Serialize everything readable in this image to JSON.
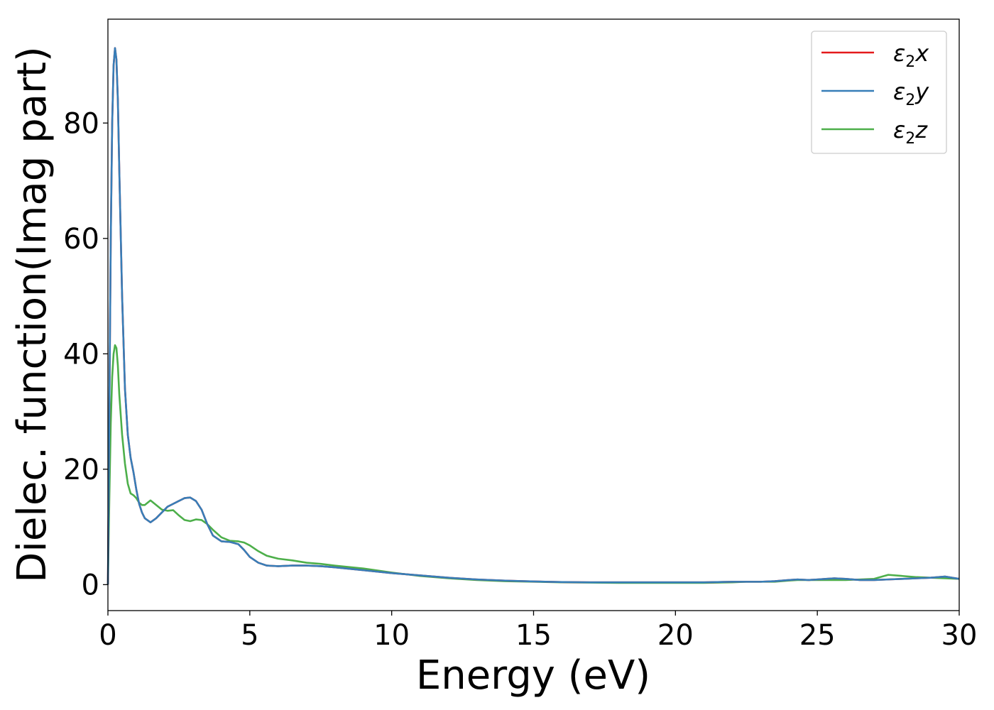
{
  "chart_data": {
    "type": "line",
    "title": "",
    "xlabel": "Energy (eV)",
    "ylabel": "Dielec. function(Imag part)",
    "xlim": [
      0,
      30
    ],
    "ylim": [
      -4.5,
      98
    ],
    "xticks": [
      0,
      5,
      10,
      15,
      20,
      25,
      30
    ],
    "yticks": [
      0,
      20,
      40,
      60,
      80
    ],
    "grid": false,
    "legend_position": "top-right",
    "series": [
      {
        "name": "x",
        "color": "#e41a1c",
        "x": [
          0,
          0.05,
          0.1,
          0.15,
          0.2,
          0.25,
          0.3,
          0.35,
          0.4,
          0.5,
          0.6,
          0.7,
          0.8,
          0.9,
          1.0,
          1.1,
          1.2,
          1.3,
          1.5,
          1.7,
          1.9,
          2.1,
          2.3,
          2.5,
          2.7,
          2.9,
          3.1,
          3.3,
          3.5,
          3.7,
          4.0,
          4.3,
          4.6,
          4.8,
          5.0,
          5.3,
          5.6,
          6.0,
          6.5,
          7.0,
          7.5,
          8.0,
          9.0,
          10.0,
          11.0,
          12.0,
          13.0,
          14.0,
          15.0,
          16.0,
          17.0,
          18.0,
          19.0,
          20.0,
          21.0,
          22.0,
          22.5,
          23.0,
          23.5,
          24.0,
          24.3,
          24.7,
          25.0,
          25.3,
          25.6,
          26.0,
          26.5,
          27.0,
          27.5,
          28.0,
          28.5,
          29.0,
          29.5,
          30.0
        ],
        "values": [
          0,
          30,
          60,
          80,
          90,
          93,
          91,
          84,
          72,
          50,
          34,
          26,
          22,
          19.5,
          16.5,
          14,
          12.5,
          11.5,
          10.8,
          11.5,
          12.5,
          13.5,
          14.0,
          14.5,
          15.0,
          15.1,
          14.5,
          13.0,
          10.5,
          8.5,
          7.5,
          7.4,
          7.0,
          6.0,
          4.8,
          3.8,
          3.3,
          3.2,
          3.3,
          3.3,
          3.2,
          3.0,
          2.5,
          2.0,
          1.6,
          1.2,
          0.9,
          0.7,
          0.55,
          0.45,
          0.4,
          0.4,
          0.4,
          0.4,
          0.4,
          0.5,
          0.5,
          0.5,
          0.6,
          0.8,
          0.9,
          0.8,
          0.9,
          1.0,
          1.1,
          1.0,
          0.8,
          0.8,
          0.9,
          1.0,
          1.1,
          1.2,
          1.4,
          1.0
        ]
      },
      {
        "name": "y",
        "color": "#377eb8",
        "x": [
          0,
          0.05,
          0.1,
          0.15,
          0.2,
          0.25,
          0.3,
          0.35,
          0.4,
          0.5,
          0.6,
          0.7,
          0.8,
          0.9,
          1.0,
          1.1,
          1.2,
          1.3,
          1.5,
          1.7,
          1.9,
          2.1,
          2.3,
          2.5,
          2.7,
          2.9,
          3.1,
          3.3,
          3.5,
          3.7,
          4.0,
          4.3,
          4.6,
          4.8,
          5.0,
          5.3,
          5.6,
          6.0,
          6.5,
          7.0,
          7.5,
          8.0,
          9.0,
          10.0,
          11.0,
          12.0,
          13.0,
          14.0,
          15.0,
          16.0,
          17.0,
          18.0,
          19.0,
          20.0,
          21.0,
          22.0,
          22.5,
          23.0,
          23.5,
          24.0,
          24.3,
          24.7,
          25.0,
          25.3,
          25.6,
          26.0,
          26.5,
          27.0,
          27.5,
          28.0,
          28.5,
          29.0,
          29.5,
          30.0
        ],
        "values": [
          0,
          30,
          60,
          80,
          90,
          93,
          91,
          84,
          72,
          50,
          34,
          26,
          22,
          19.5,
          16.5,
          14,
          12.5,
          11.5,
          10.8,
          11.5,
          12.5,
          13.5,
          14.0,
          14.5,
          15.0,
          15.1,
          14.5,
          13.0,
          10.5,
          8.5,
          7.5,
          7.4,
          7.0,
          6.0,
          4.8,
          3.8,
          3.3,
          3.2,
          3.3,
          3.3,
          3.2,
          3.0,
          2.5,
          2.0,
          1.6,
          1.2,
          0.9,
          0.7,
          0.55,
          0.45,
          0.4,
          0.4,
          0.4,
          0.4,
          0.4,
          0.5,
          0.5,
          0.5,
          0.6,
          0.8,
          0.9,
          0.8,
          0.9,
          1.0,
          1.1,
          1.0,
          0.8,
          0.8,
          0.9,
          1.0,
          1.1,
          1.2,
          1.4,
          1.0
        ]
      },
      {
        "name": "z",
        "color": "#4daf4a",
        "x": [
          0,
          0.05,
          0.1,
          0.15,
          0.2,
          0.25,
          0.3,
          0.35,
          0.4,
          0.5,
          0.6,
          0.7,
          0.8,
          0.9,
          1.0,
          1.1,
          1.2,
          1.3,
          1.5,
          1.7,
          1.9,
          2.1,
          2.3,
          2.5,
          2.7,
          2.9,
          3.1,
          3.3,
          3.5,
          3.7,
          4.0,
          4.3,
          4.6,
          4.8,
          5.0,
          5.3,
          5.6,
          6.0,
          6.5,
          7.0,
          7.5,
          8.0,
          9.0,
          10.0,
          11.0,
          12.0,
          13.0,
          14.0,
          15.0,
          16.0,
          17.0,
          18.0,
          19.0,
          20.0,
          21.0,
          22.0,
          22.5,
          23.0,
          23.5,
          24.0,
          24.3,
          24.7,
          25.0,
          25.3,
          25.6,
          26.0,
          26.5,
          27.0,
          27.5,
          28.0,
          28.5,
          29.0,
          29.5,
          30.0
        ],
        "values": [
          0,
          15,
          28,
          36,
          40,
          41.5,
          41,
          38,
          33,
          26,
          21,
          17.5,
          15.8,
          15.5,
          15.0,
          14.2,
          13.8,
          13.8,
          14.6,
          13.8,
          13.0,
          12.8,
          12.9,
          12.0,
          11.2,
          11.0,
          11.3,
          11.2,
          10.5,
          9.5,
          8.2,
          7.6,
          7.5,
          7.3,
          6.8,
          5.8,
          5.0,
          4.5,
          4.2,
          3.8,
          3.6,
          3.3,
          2.8,
          2.1,
          1.5,
          1.1,
          0.8,
          0.6,
          0.5,
          0.4,
          0.35,
          0.3,
          0.3,
          0.3,
          0.3,
          0.4,
          0.5,
          0.5,
          0.5,
          0.7,
          0.8,
          0.8,
          0.8,
          0.8,
          0.8,
          0.8,
          0.9,
          1.0,
          1.7,
          1.5,
          1.3,
          1.2,
          1.1,
          1.0
        ]
      }
    ]
  },
  "legend": {
    "symbol": "ε",
    "subscript": "2"
  }
}
